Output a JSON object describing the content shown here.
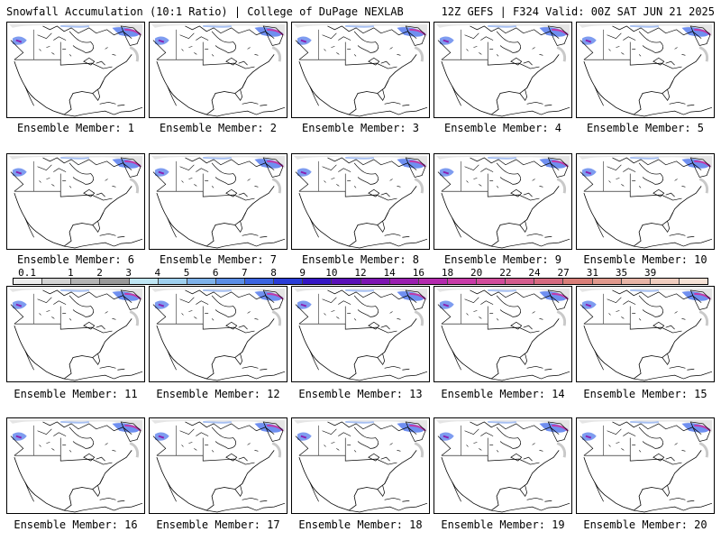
{
  "header": {
    "title": "Snowfall Accumulation (10:1 Ratio) | College of DuPage NEXLAB",
    "run_info": "12Z GEFS | F324 Valid: 00Z SAT JUN 21 2025"
  },
  "members": [
    {
      "label": "Ensemble Member: 1"
    },
    {
      "label": "Ensemble Member: 2"
    },
    {
      "label": "Ensemble Member: 3"
    },
    {
      "label": "Ensemble Member: 4"
    },
    {
      "label": "Ensemble Member: 5"
    },
    {
      "label": "Ensemble Member: 6"
    },
    {
      "label": "Ensemble Member: 7"
    },
    {
      "label": "Ensemble Member: 8"
    },
    {
      "label": "Ensemble Member: 9"
    },
    {
      "label": "Ensemble Member: 10"
    },
    {
      "label": "Ensemble Member: 11"
    },
    {
      "label": "Ensemble Member: 12"
    },
    {
      "label": "Ensemble Member: 13"
    },
    {
      "label": "Ensemble Member: 14"
    },
    {
      "label": "Ensemble Member: 15"
    },
    {
      "label": "Ensemble Member: 16"
    },
    {
      "label": "Ensemble Member: 17"
    },
    {
      "label": "Ensemble Member: 18"
    },
    {
      "label": "Ensemble Member: 19"
    },
    {
      "label": "Ensemble Member: 20"
    }
  ],
  "colorbar": {
    "ticks": [
      "0.1",
      "1",
      "2",
      "3",
      "4",
      "5",
      "6",
      "7",
      "8",
      "9",
      "10",
      "12",
      "14",
      "16",
      "18",
      "20",
      "22",
      "24",
      "27",
      "31",
      "35",
      "39"
    ],
    "colors": [
      "#ececec",
      "#d3d3d3",
      "#b4b4b4",
      "#999999",
      "#bfe6f4",
      "#9ed0ef",
      "#7eb2ea",
      "#5b8ee6",
      "#3b64e0",
      "#2a3cd6",
      "#3516c4",
      "#5a10b8",
      "#7d14b2",
      "#9a1eb0",
      "#b42aae",
      "#c83aa8",
      "#d24c9c",
      "#d45c8e",
      "#d66a80",
      "#d97e78",
      "#e0988c",
      "#e8b4a6",
      "#f0cdbf",
      "#f6e2d6"
    ]
  },
  "map_colors": {
    "land_lines": "#000000",
    "snow_light": "#c8c8c8",
    "snow_blue": "#6f8ff0",
    "snow_purple": "#8a1fb0",
    "snow_magenta": "#d23d9e"
  }
}
